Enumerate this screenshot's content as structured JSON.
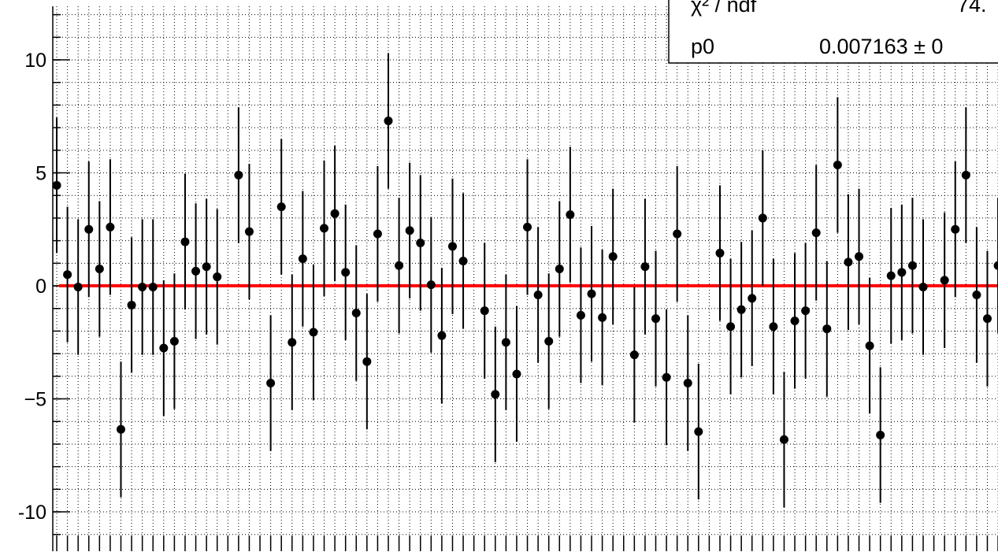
{
  "chart_data": {
    "type": "scatter",
    "x": [
      0,
      1,
      2,
      3,
      4,
      5,
      6,
      7,
      8,
      9,
      10,
      11,
      12,
      13,
      14,
      15,
      17,
      18,
      20,
      21,
      22,
      23,
      24,
      25,
      26,
      27,
      28,
      29,
      30,
      31,
      32,
      33,
      34,
      35,
      36,
      37,
      38,
      40,
      41,
      42,
      43,
      44,
      45,
      46,
      47,
      48,
      49,
      50,
      51,
      52,
      54,
      55,
      56,
      57,
      58,
      59,
      60,
      62,
      63,
      64,
      65,
      66,
      67,
      68,
      69,
      70,
      71,
      72,
      73,
      74,
      75,
      76,
      77,
      78,
      79,
      80,
      81,
      83,
      84,
      85,
      86,
      87,
      88
    ],
    "values": [
      4.45,
      0.5,
      -0.05,
      2.5,
      0.75,
      2.6,
      -6.35,
      -0.85,
      -0.05,
      -0.05,
      -2.75,
      -2.45,
      1.95,
      0.65,
      0.85,
      0.4,
      4.9,
      2.4,
      -4.3,
      3.5,
      -2.5,
      1.2,
      -2.05,
      2.55,
      3.2,
      0.6,
      -1.2,
      -3.35,
      2.3,
      7.3,
      0.9,
      2.45,
      1.9,
      0.05,
      -2.2,
      1.75,
      1.1,
      -1.1,
      -4.8,
      -2.5,
      -3.9,
      2.6,
      -0.4,
      -2.45,
      0.75,
      3.15,
      -1.3,
      -0.35,
      -1.4,
      1.3,
      -3.05,
      0.85,
      -1.45,
      -4.05,
      2.3,
      -4.3,
      -6.45,
      1.45,
      -1.8,
      -1.05,
      -0.55,
      3.0,
      -1.8,
      -6.8,
      -1.55,
      -1.1,
      2.35,
      -1.9,
      5.35,
      1.05,
      1.3,
      -2.65,
      -6.6,
      0.45,
      0.6,
      0.9,
      -0.05,
      0.25,
      2.5,
      4.9,
      -0.4,
      -1.45,
      0.9
    ],
    "errors": [
      3,
      3,
      3,
      3,
      3,
      3,
      3,
      3,
      3,
      3,
      3,
      3,
      3,
      3,
      3,
      3,
      3,
      3,
      3,
      3,
      3,
      3,
      3,
      3,
      3,
      3,
      3,
      3,
      3,
      3,
      3,
      3,
      3,
      3,
      3,
      3,
      3,
      3,
      3,
      3,
      3,
      3,
      3,
      3,
      3,
      3,
      3,
      3,
      3,
      3,
      3,
      3,
      3,
      3,
      3,
      3,
      3,
      3,
      3,
      3,
      3,
      3,
      3,
      3,
      3,
      3,
      3,
      3,
      3,
      3,
      3,
      3,
      3,
      3,
      3,
      3,
      3,
      3,
      3,
      3,
      3,
      3,
      3
    ],
    "color": "#000000",
    "fit": {
      "value": 0.007163,
      "color": "#ff0000"
    },
    "stats": {
      "rows": [
        [
          "χ² / ndf",
          "74."
        ],
        [
          "p0",
          "0.007163 ± 0"
        ]
      ]
    },
    "xlim": [
      -0.37,
      88.3
    ],
    "ylim": [
      -11.74,
      12.37
    ],
    "xticks": [
      0,
      1,
      2,
      3,
      4,
      5,
      6,
      7,
      8,
      9,
      10,
      11,
      12,
      13,
      14,
      15,
      16,
      17,
      18,
      19,
      20,
      21,
      22,
      23,
      24,
      25,
      26,
      27,
      28,
      29,
      30,
      31,
      32,
      33,
      34,
      35,
      36,
      37,
      38,
      39,
      40,
      41,
      42,
      43,
      44,
      45,
      46,
      47,
      48,
      49,
      50,
      51,
      52,
      53,
      54,
      55,
      56,
      57,
      58,
      59,
      60,
      61,
      62,
      63,
      64,
      65,
      66,
      67,
      68,
      69,
      70,
      71,
      72,
      73,
      74,
      75,
      76,
      77,
      78,
      79,
      80,
      81,
      82,
      83,
      84,
      85,
      86,
      87,
      88
    ],
    "yticks": [
      -10,
      {
        "value": -5,
        "label": "−5"
      },
      0,
      5,
      10
    ],
    "grid": true
  }
}
